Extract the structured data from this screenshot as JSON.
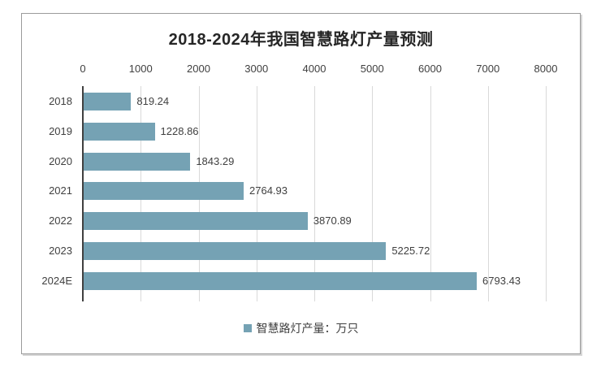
{
  "chart_data": {
    "type": "bar",
    "orientation": "horizontal",
    "title": "2018-2024年我国智慧路灯产量预测",
    "categories": [
      "2018",
      "2019",
      "2020",
      "2021",
      "2022",
      "2023",
      "2024E"
    ],
    "values": [
      819.24,
      1228.86,
      1843.29,
      2764.93,
      3870.89,
      5225.72,
      6793.43
    ],
    "legend": {
      "label": "智慧路灯产量：万只"
    },
    "x_axis": {
      "position": "top",
      "min": 0,
      "max": 8000,
      "tick_interval": 1000,
      "tick_labels": [
        "0",
        "1000",
        "2000",
        "3000",
        "4000",
        "5000",
        "6000",
        "7000",
        "8000"
      ]
    },
    "grid": true,
    "layout_hints": {
      "legend_position": "bottom-center",
      "value_labels_shown": true
    },
    "colors": {
      "bar": "#75a2b4",
      "gridline": "#d9d9d9",
      "axis_line": "#404040",
      "title_text": "#262626",
      "label_text": "#404040",
      "chart_border": "#9b9b9b",
      "background": "#ffffff"
    }
  }
}
